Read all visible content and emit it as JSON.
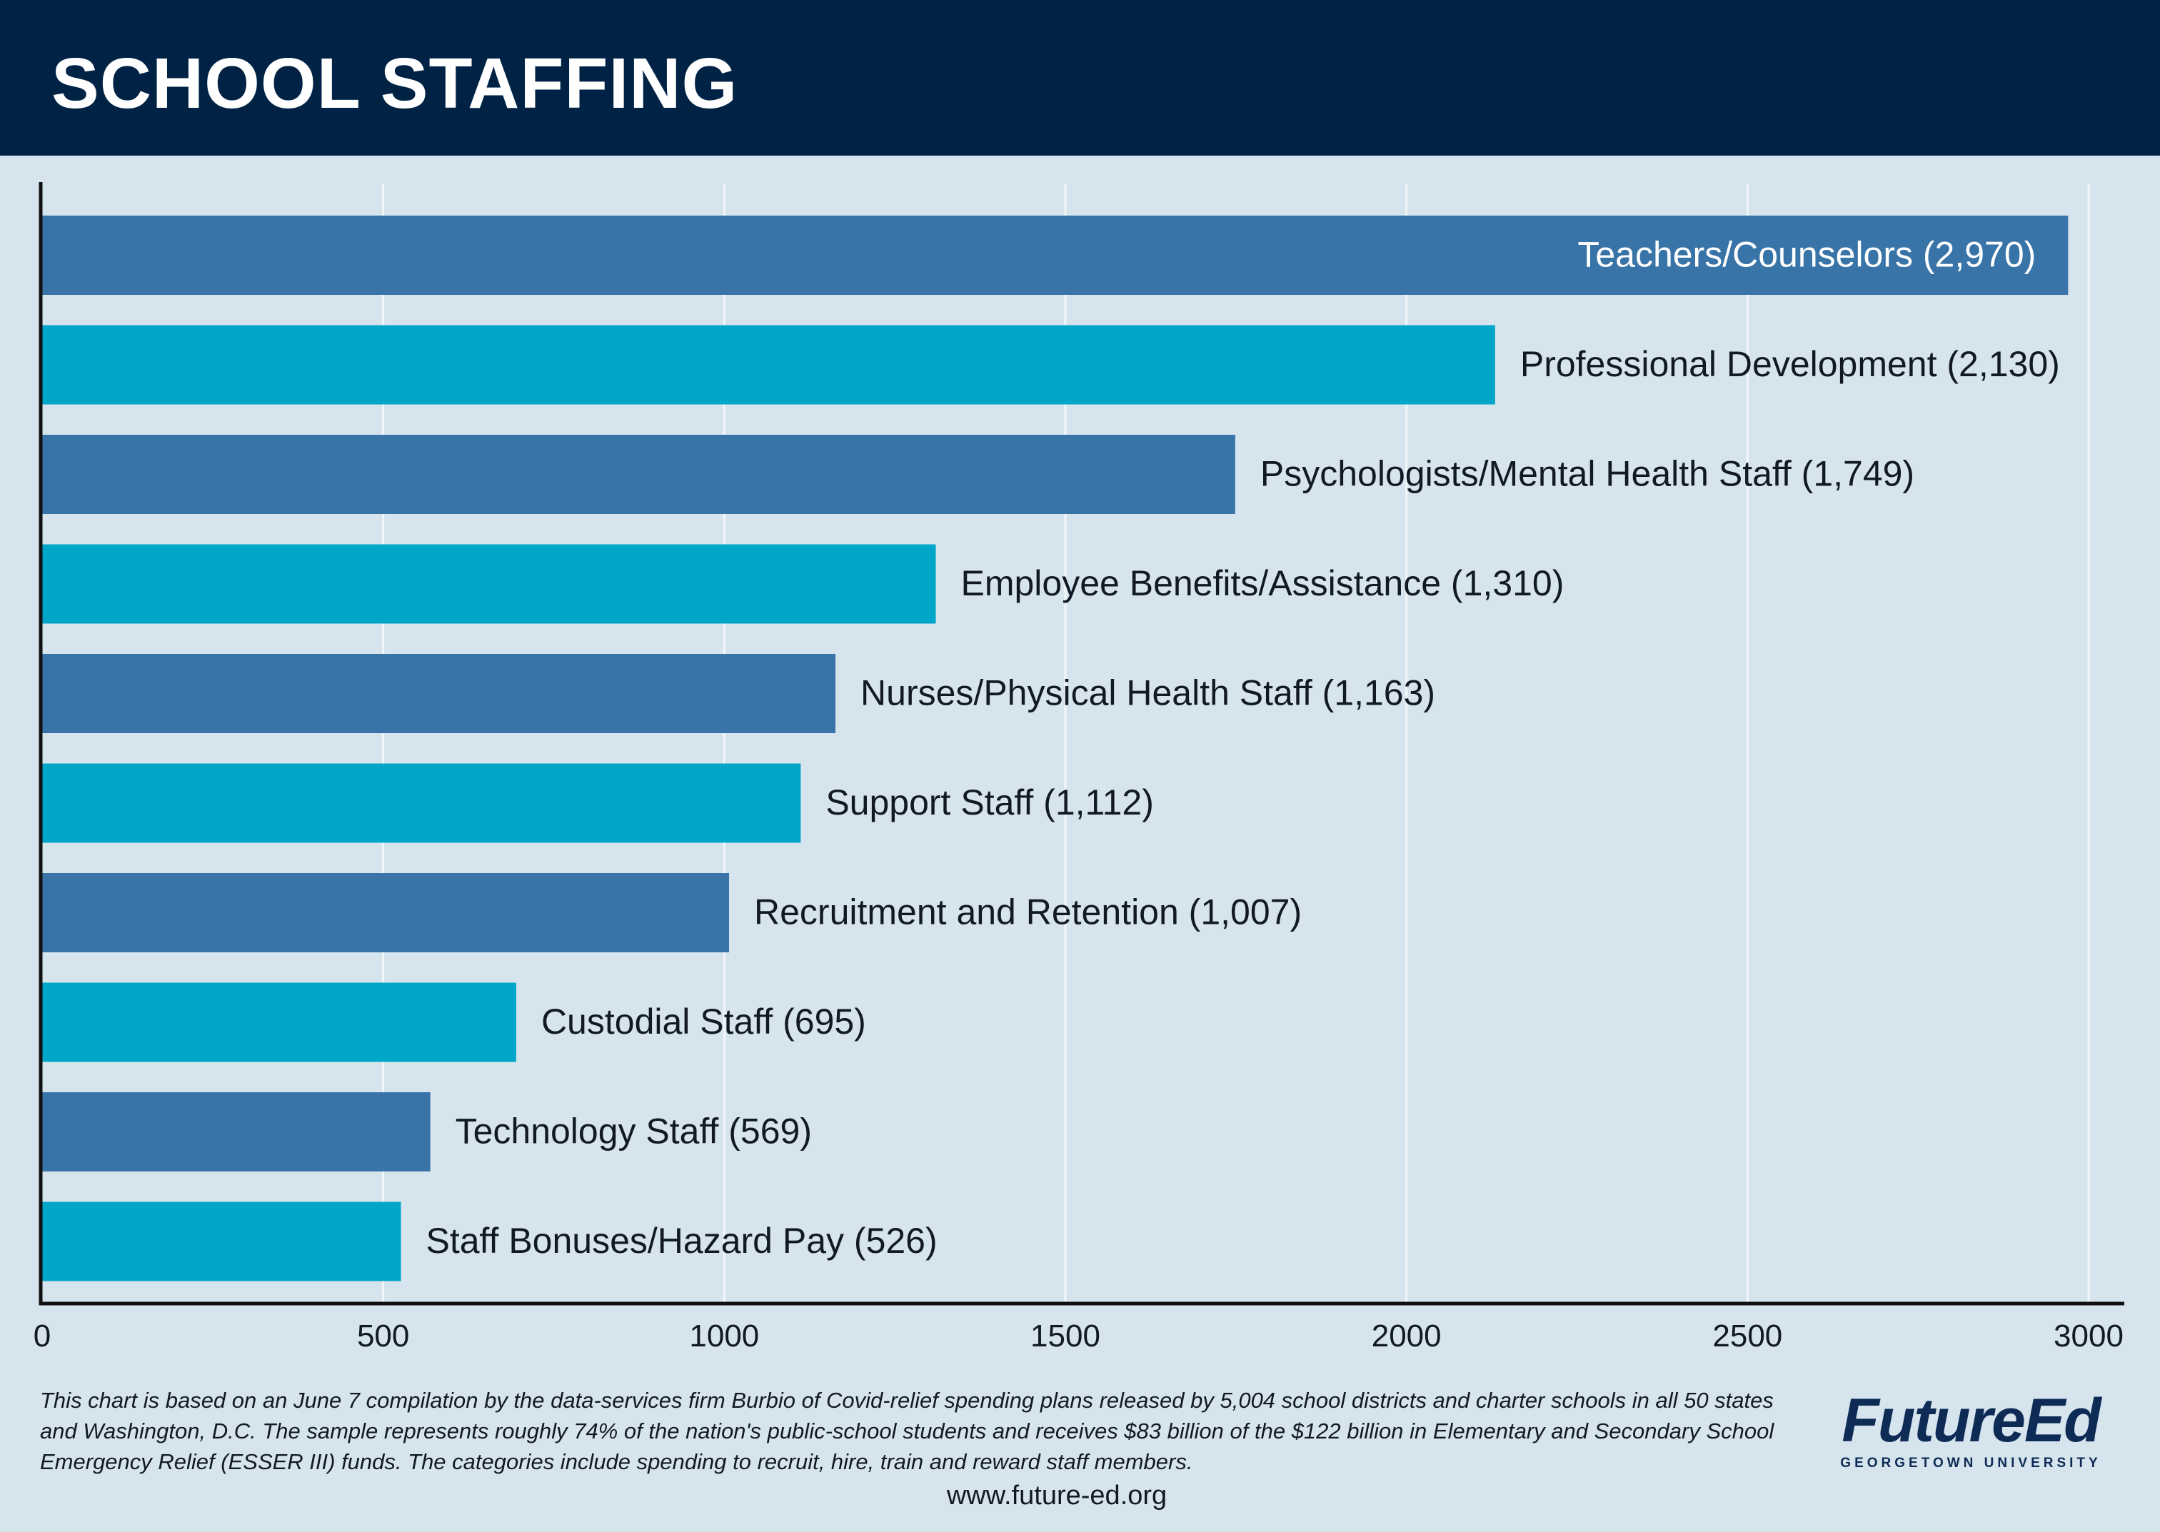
{
  "header": {
    "title": "SCHOOL STAFFING"
  },
  "chart_data": {
    "type": "bar",
    "orientation": "horizontal",
    "title": "SCHOOL STAFFING",
    "xlabel": "",
    "ylabel": "",
    "xlim": [
      0,
      3000
    ],
    "xticks": [
      0,
      500,
      1000,
      1500,
      2000,
      2500,
      3000
    ],
    "grid": "vertical",
    "categories": [
      "Teachers/Counselors (2,970)",
      "Professional Development (2,130)",
      "Psychologists/Mental Health Staff (1,749)",
      "Employee Benefits/Assistance (1,310)",
      "Nurses/Physical Health Staff (1,163)",
      "Support Staff (1,112)",
      "Recruitment and Retention (1,007)",
      "Custodial Staff (695)",
      "Technology Staff (569)",
      "Staff Bonuses/Hazard Pay (526)"
    ],
    "values": [
      2970,
      2130,
      1749,
      1310,
      1163,
      1112,
      1007,
      695,
      569,
      526
    ],
    "colors": [
      "#3874a8",
      "#00a6c8"
    ]
  },
  "footer": {
    "note": "This chart is based on an June 7 compilation by the data-services firm Burbio of Covid-relief spending plans released by 5,004 school districts and charter schools in all 50 states and Washington, D.C. The sample represents roughly 74% of the nation's public-school students and receives $83 billion of the $122 billion in Elementary and Secondary School Emergency Relief (ESSER III) funds. The categories include spending to recruit, hire, train and reward staff members.",
    "website": "www.future-ed.org"
  },
  "logo": {
    "name": "FutureEd",
    "subtitle": "GEORGETOWN UNIVERSITY"
  }
}
